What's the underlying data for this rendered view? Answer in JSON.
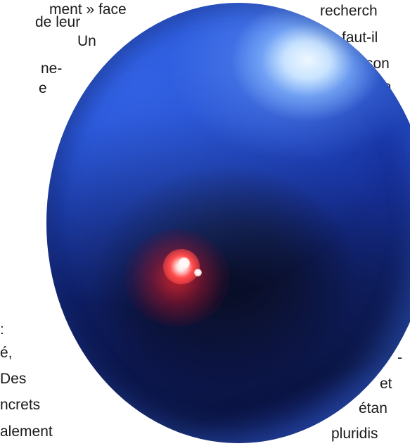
{
  "text_fragments": {
    "left": [
      "ment » face",
      "de   leur",
      "Un",
      "ne-",
      "e",
      ":",
      "é,",
      "Des",
      "ncrets",
      "alement"
    ],
    "right": [
      "recherch",
      "faut-il",
      "son",
      "a",
      "-",
      "et",
      "étan",
      "pluridis"
    ]
  },
  "image": {
    "subject": "blue sphere with two red-white point sources",
    "colors": {
      "sphere_blue": "#2550d1",
      "sphere_dark": "#0b1233",
      "highlight": "#eef7ff",
      "glow_red": "#ff2a2a"
    }
  }
}
